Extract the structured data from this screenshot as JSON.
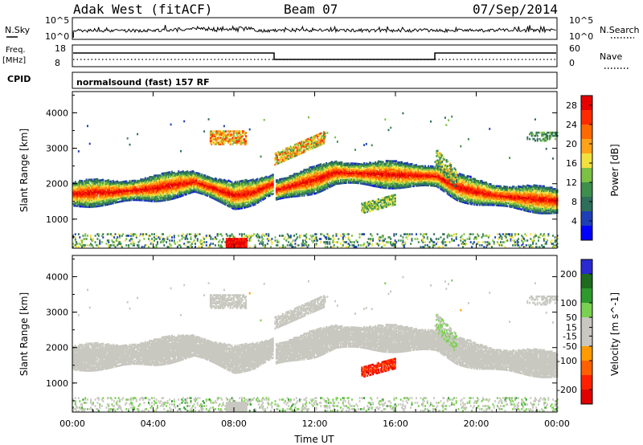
{
  "header": {
    "station": "Adak West (fitACF)",
    "beam": "Beam 07",
    "date": "07/Sep/2014"
  },
  "summary_panels": {
    "nsky_label": "N.Sky",
    "nsky_ticks": [
      "10^5",
      "10^0"
    ],
    "nsearch_label": "N.Search",
    "nsearch_ticks": [
      "10^5",
      "10^0"
    ],
    "freq_label_1": "Freq.",
    "freq_label_2": "[MHz]",
    "freq_ticks": [
      "18",
      "8"
    ],
    "nave_label": "Nave",
    "nave_ticks": [
      "60",
      "0"
    ],
    "cpid_label": "CPID",
    "cpid_value": "normalsound (fast) 157 RF"
  },
  "colors": {
    "power": [
      "#0000ff",
      "#1e3fb4",
      "#2e6e5a",
      "#3e8e4e",
      "#7cc044",
      "#f0e040",
      "#ffa21a",
      "#ff6a00",
      "#ff2a00",
      "#e60000"
    ],
    "velocity": [
      "#2a2ad0",
      "#1e6a1e",
      "#2e9a2e",
      "#7ad050",
      "#c8c8c0",
      "#c8c8c0",
      "#ff9a00",
      "#ff6000",
      "#ff2000",
      "#e00000"
    ],
    "ground": "#c8c8c0"
  },
  "chart_data": [
    {
      "type": "heatmap",
      "title": "",
      "xlabel": "Time UT",
      "ylabel": "Slant Range [km]",
      "x_ticks": [
        "00:00",
        "04:00",
        "08:00",
        "12:00",
        "16:00",
        "20:00",
        "00:00"
      ],
      "xlim_hours": [
        0,
        24
      ],
      "y_ticks": [
        1000,
        2000,
        3000,
        4000
      ],
      "ylim": [
        180,
        4600
      ],
      "colorbar": {
        "label": "Power [dB]",
        "ticks": [
          4,
          8,
          12,
          16,
          20,
          24,
          28
        ],
        "range": [
          0,
          30
        ]
      },
      "scatter_band": {
        "hours": [
          0,
          2,
          4,
          6,
          7,
          8,
          9,
          10,
          10.01,
          11,
          12,
          13,
          18,
          19,
          20,
          21,
          22,
          23,
          24
        ],
        "center_km": [
          1700,
          1750,
          1850,
          2050,
          1850,
          1650,
          1750,
          2000,
          1800,
          1950,
          2100,
          2300,
          2200,
          1900,
          1750,
          1650,
          1600,
          1550,
          1500
        ],
        "core_power_db": 29
      }
    },
    {
      "type": "heatmap",
      "title": "",
      "xlabel": "Time UT",
      "ylabel": "Slant Range [km]",
      "x_ticks": [
        "00:00",
        "04:00",
        "08:00",
        "12:00",
        "16:00",
        "20:00",
        "00:00"
      ],
      "xlim_hours": [
        0,
        24
      ],
      "y_ticks": [
        1000,
        2000,
        3000,
        4000
      ],
      "ylim": [
        180,
        4600
      ],
      "colorbar": {
        "label": "Velocity [m s^-1]",
        "ticks": [
          200,
          100,
          50,
          15,
          -15,
          -50,
          -100,
          -200
        ],
        "range": [
          -250,
          250
        ]
      },
      "ground_scatter_note": "gray"
    }
  ]
}
